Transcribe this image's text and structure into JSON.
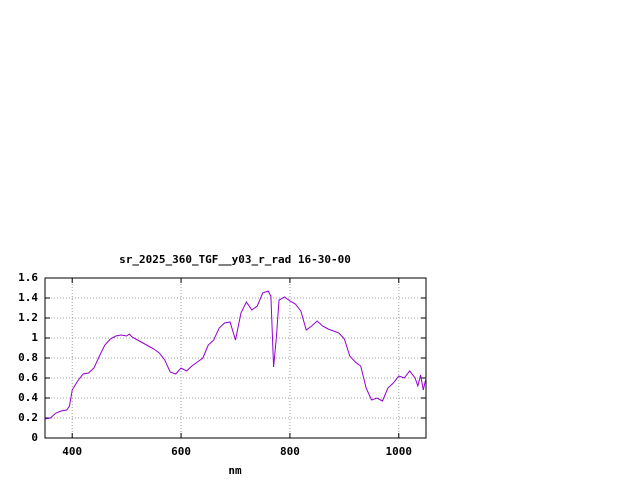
{
  "chart_data": {
    "type": "line",
    "title": "sr_2025_360_TGF__y03_r_rad 16-30-00",
    "x_label": "nm",
    "x": [
      350,
      360,
      370,
      380,
      390,
      395,
      400,
      410,
      420,
      430,
      440,
      450,
      460,
      470,
      480,
      490,
      500,
      505,
      510,
      520,
      530,
      540,
      550,
      560,
      570,
      580,
      590,
      600,
      610,
      620,
      630,
      640,
      650,
      660,
      670,
      680,
      690,
      700,
      710,
      720,
      730,
      740,
      750,
      760,
      765,
      770,
      775,
      780,
      790,
      800,
      810,
      820,
      830,
      840,
      850,
      860,
      870,
      880,
      890,
      900,
      910,
      920,
      930,
      940,
      950,
      960,
      970,
      980,
      990,
      1000,
      1010,
      1020,
      1030,
      1035,
      1040,
      1045,
      1050
    ],
    "series": [
      {
        "color": "#9400d3",
        "values": [
          0.19,
          0.2,
          0.25,
          0.27,
          0.28,
          0.32,
          0.48,
          0.57,
          0.64,
          0.65,
          0.7,
          0.82,
          0.93,
          0.99,
          1.02,
          1.03,
          1.02,
          1.04,
          1.01,
          0.98,
          0.95,
          0.92,
          0.89,
          0.85,
          0.78,
          0.66,
          0.64,
          0.7,
          0.67,
          0.72,
          0.76,
          0.8,
          0.93,
          0.98,
          1.1,
          1.15,
          1.16,
          0.98,
          1.25,
          1.36,
          1.28,
          1.32,
          1.45,
          1.47,
          1.42,
          0.71,
          1.0,
          1.38,
          1.41,
          1.37,
          1.34,
          1.27,
          1.08,
          1.12,
          1.17,
          1.12,
          1.09,
          1.07,
          1.05,
          0.99,
          0.82,
          0.76,
          0.72,
          0.5,
          0.38,
          0.4,
          0.37,
          0.5,
          0.55,
          0.62,
          0.6,
          0.67,
          0.6,
          0.52,
          0.63,
          0.48,
          0.6
        ]
      }
    ],
    "xlim": [
      350,
      1050
    ],
    "xticks": [
      400,
      600,
      800,
      1000
    ],
    "ylim": [
      0,
      1.6
    ],
    "yticks": [
      0,
      0.2,
      0.4,
      0.6,
      0.8,
      1,
      1.2,
      1.4,
      1.6
    ],
    "grid": true
  }
}
